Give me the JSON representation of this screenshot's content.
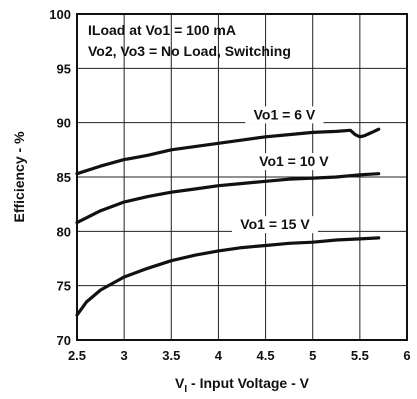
{
  "chart_data": {
    "type": "line",
    "xlabel_main": "V",
    "xlabel_sub": "I",
    "xlabel_rest": " - Input Voltage - V",
    "ylabel": "Efficiency - %",
    "xlim": [
      2.5,
      6
    ],
    "ylim": [
      70,
      100
    ],
    "xticks": [
      "2.5",
      "3",
      "3.5",
      "4",
      "4.5",
      "5",
      "5.5",
      "6"
    ],
    "yticks": [
      "70",
      "75",
      "80",
      "85",
      "90",
      "95",
      "100"
    ],
    "grid": true,
    "annotations": [
      "ILoad at Vo1 = 100 mA",
      "Vo2, Vo3 = No Load, Switching"
    ],
    "line_color": "#111111",
    "series": [
      {
        "name": "Vo1 = 6 V",
        "x": [
          2.5,
          2.75,
          3.0,
          3.25,
          3.5,
          3.75,
          4.0,
          4.25,
          4.5,
          4.75,
          5.0,
          5.25,
          5.4,
          5.45,
          5.5,
          5.55,
          5.6,
          5.65,
          5.7
        ],
        "y": [
          85.3,
          86.0,
          86.6,
          87.0,
          87.5,
          87.8,
          88.1,
          88.4,
          88.7,
          88.9,
          89.1,
          89.2,
          89.3,
          88.9,
          88.7,
          88.8,
          89.0,
          89.2,
          89.4
        ]
      },
      {
        "name": "Vo1 = 10 V",
        "x": [
          2.5,
          2.75,
          3.0,
          3.25,
          3.5,
          3.75,
          4.0,
          4.25,
          4.5,
          4.75,
          5.0,
          5.25,
          5.5,
          5.7
        ],
        "y": [
          80.8,
          81.9,
          82.7,
          83.2,
          83.6,
          83.9,
          84.2,
          84.4,
          84.6,
          84.8,
          84.9,
          85.0,
          85.2,
          85.3
        ]
      },
      {
        "name": "Vo1 = 15 V",
        "x": [
          2.5,
          2.6,
          2.75,
          3.0,
          3.25,
          3.5,
          3.75,
          4.0,
          4.25,
          4.5,
          4.75,
          5.0,
          5.25,
          5.5,
          5.7
        ],
        "y": [
          72.3,
          73.5,
          74.6,
          75.8,
          76.6,
          77.3,
          77.8,
          78.2,
          78.5,
          78.7,
          78.9,
          79.0,
          79.2,
          79.3,
          79.4
        ]
      }
    ]
  }
}
